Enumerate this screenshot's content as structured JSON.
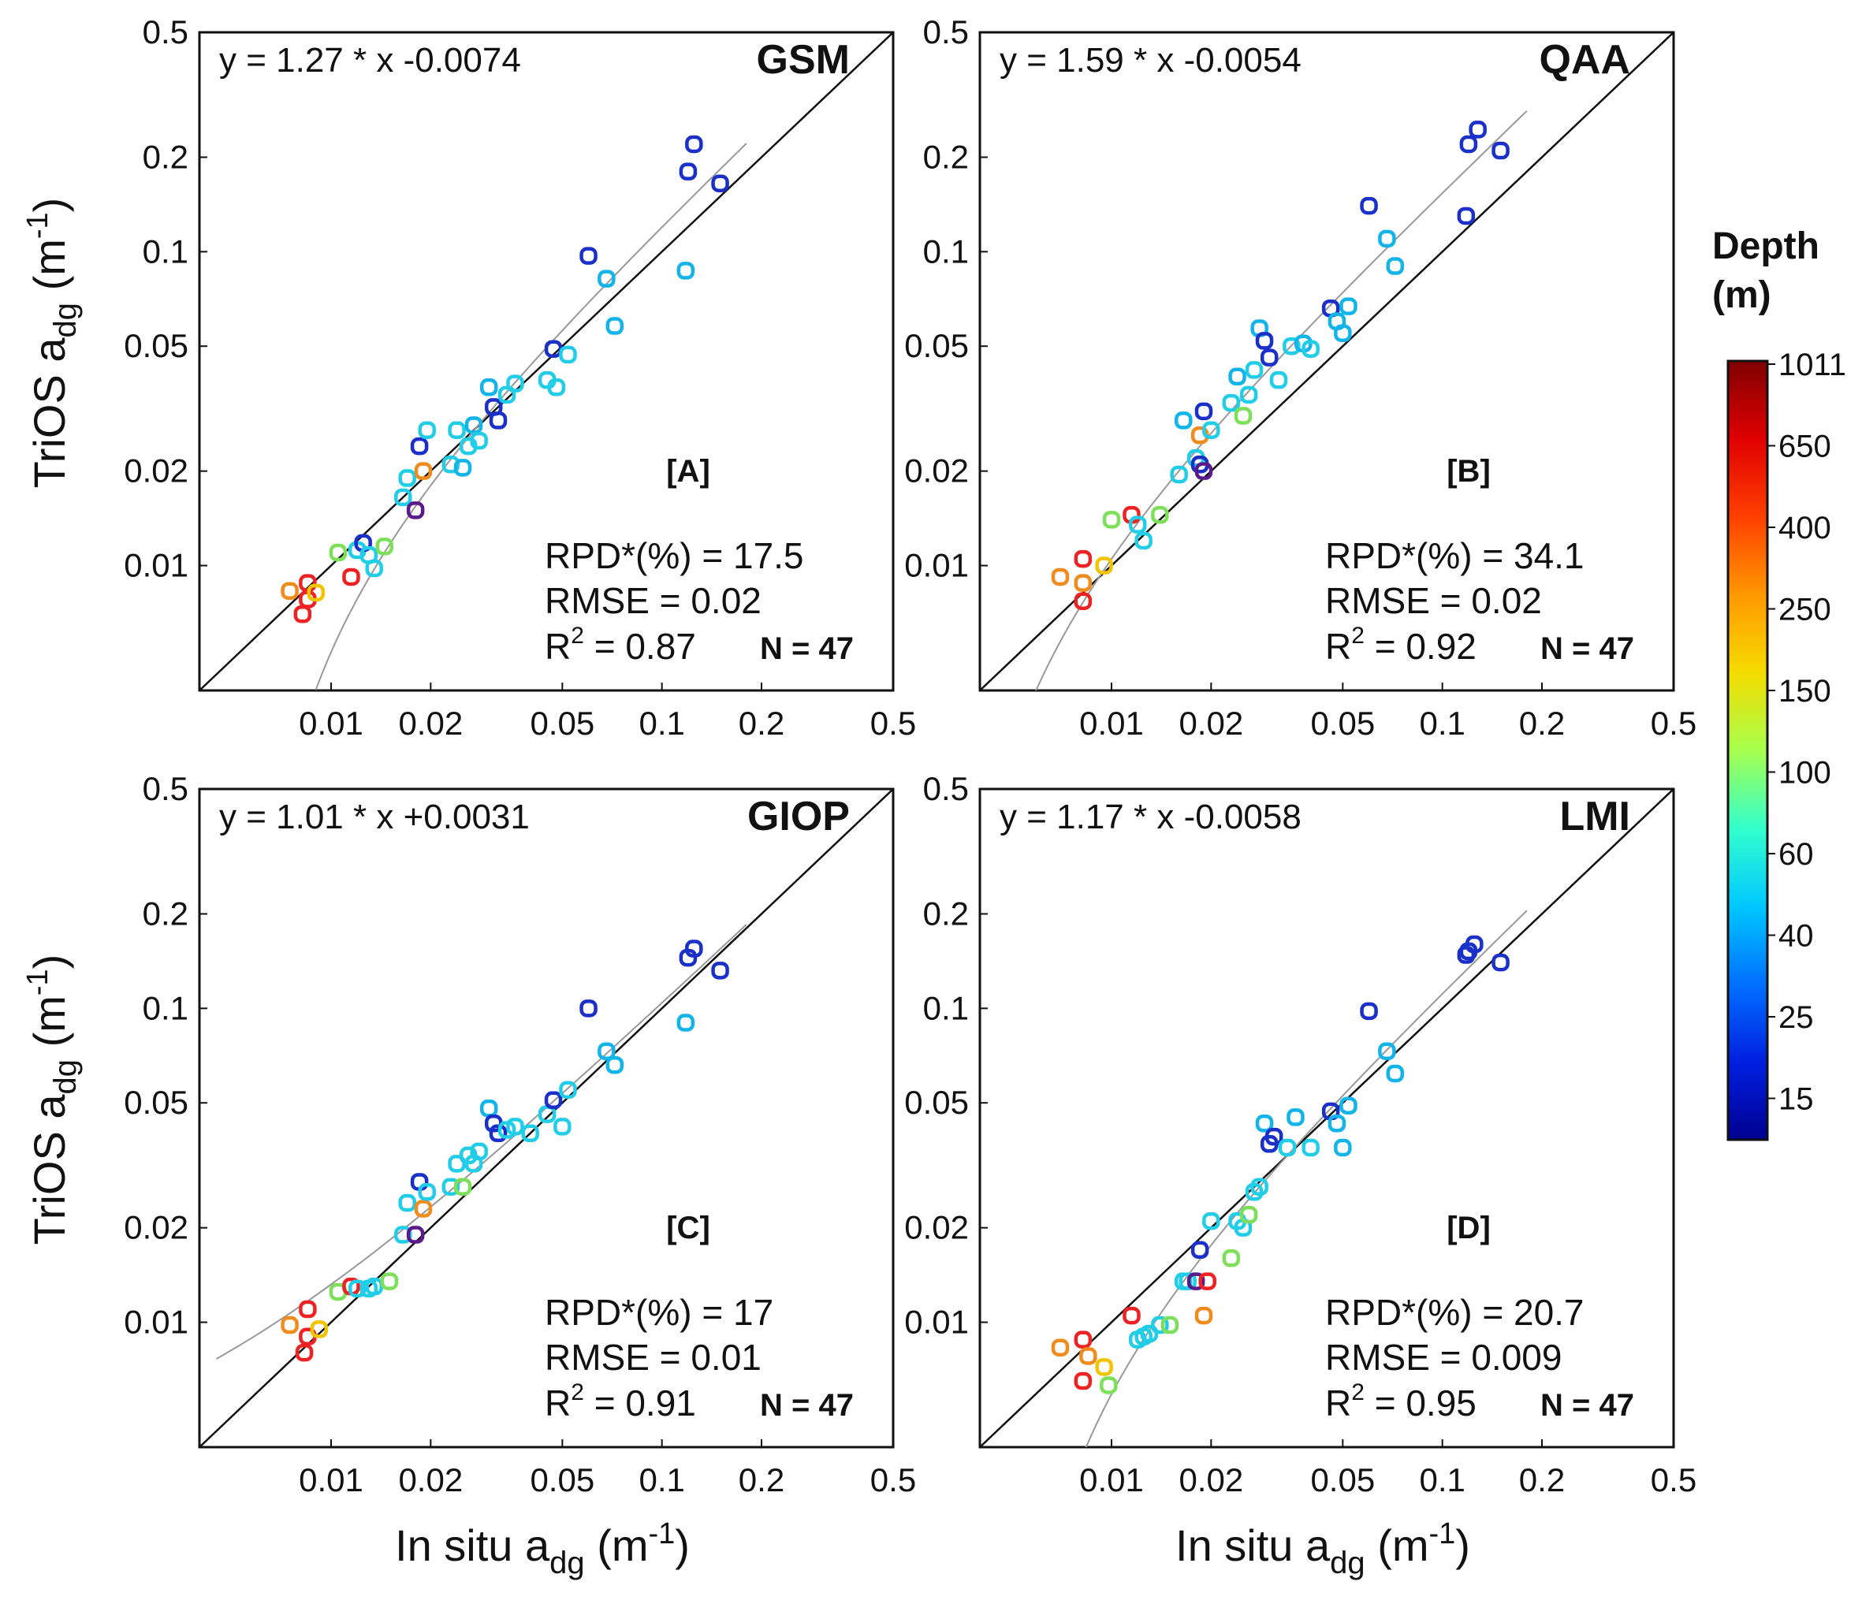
{
  "figure": {
    "y_axis_label": "TriOS a",
    "y_axis_sub": "dg",
    "x_axis_label": "In situ a",
    "x_axis_sub": "dg",
    "unit_open": " (m",
    "unit_exp": "-1",
    "unit_close": ")",
    "colorbar": {
      "title_line1": "Depth",
      "title_line2": "(m)",
      "tick_labels": [
        "1011",
        "650",
        "400",
        "250",
        "150",
        "100",
        "60",
        "40",
        "25",
        "15"
      ],
      "colors": [
        "#800000",
        "#e00000",
        "#ff4000",
        "#ff9800",
        "#f5dc00",
        "#a6ff4d",
        "#33ffcc",
        "#00c8ff",
        "#0070ff",
        "#0020e0",
        "#000090"
      ]
    }
  },
  "chart_data": [
    {
      "type": "scatter",
      "panel": "[A]",
      "title": "GSM",
      "equation": "y = 1.27 * x -0.0074",
      "stats": {
        "rpd": "RPD*(%) = 17.5",
        "rmse": "RMSE = 0.02",
        "r2_prefix": "R",
        "r2_sup": "2",
        "r2_value": " = 0.87",
        "n": "N = 47"
      },
      "fit": {
        "slope": 1.27,
        "intercept": -0.0074
      },
      "xscale": "log",
      "yscale": "log",
      "xlim": [
        0.004,
        0.5
      ],
      "ylim": [
        0.004,
        0.5
      ],
      "x_ticks": [
        "0.01",
        "0.02",
        "0.05",
        "0.1",
        "0.2",
        "0.5"
      ],
      "y_ticks": [
        "0.01",
        "0.02",
        "0.05",
        "0.1",
        "0.2",
        "0.5"
      ],
      "points": [
        [
          0.0075,
          0.0083,
          "orange"
        ],
        [
          0.0085,
          0.0088,
          "red"
        ],
        [
          0.0085,
          0.0078,
          "red"
        ],
        [
          0.0082,
          0.007,
          "red"
        ],
        [
          0.009,
          0.0082,
          "yellow"
        ],
        [
          0.0105,
          0.011,
          "lightgreen"
        ],
        [
          0.0115,
          0.0092,
          "red"
        ],
        [
          0.012,
          0.0112,
          "cyan"
        ],
        [
          0.0125,
          0.0118,
          "blue"
        ],
        [
          0.013,
          0.0108,
          "cyan"
        ],
        [
          0.0135,
          0.0098,
          "cyan"
        ],
        [
          0.0145,
          0.0115,
          "lightgreen"
        ],
        [
          0.0165,
          0.0165,
          "cyan"
        ],
        [
          0.017,
          0.019,
          "cyan"
        ],
        [
          0.018,
          0.015,
          "navy"
        ],
        [
          0.0185,
          0.024,
          "blue"
        ],
        [
          0.019,
          0.02,
          "orange"
        ],
        [
          0.0195,
          0.027,
          "cyan"
        ],
        [
          0.023,
          0.021,
          "cyan"
        ],
        [
          0.024,
          0.027,
          "cyan"
        ],
        [
          0.025,
          0.0205,
          "lightblue"
        ],
        [
          0.026,
          0.024,
          "cyan"
        ],
        [
          0.027,
          0.028,
          "lightblue"
        ],
        [
          0.028,
          0.025,
          "cyan"
        ],
        [
          0.03,
          0.037,
          "lightblue"
        ],
        [
          0.031,
          0.032,
          "blue"
        ],
        [
          0.032,
          0.029,
          "blue"
        ],
        [
          0.034,
          0.035,
          "cyan"
        ],
        [
          0.036,
          0.038,
          "cyan"
        ],
        [
          0.045,
          0.039,
          "cyan"
        ],
        [
          0.047,
          0.049,
          "blue"
        ],
        [
          0.048,
          0.037,
          "cyan"
        ],
        [
          0.052,
          0.047,
          "cyan"
        ],
        [
          0.06,
          0.097,
          "blue"
        ],
        [
          0.068,
          0.082,
          "lightblue"
        ],
        [
          0.072,
          0.058,
          "lightblue"
        ],
        [
          0.118,
          0.087,
          "lightblue"
        ],
        [
          0.12,
          0.18,
          "blue"
        ],
        [
          0.125,
          0.22,
          "blue"
        ],
        [
          0.15,
          0.165,
          "blue"
        ]
      ]
    },
    {
      "type": "scatter",
      "panel": "[B]",
      "title": "QAA",
      "equation": "y = 1.59 * x -0.0054",
      "stats": {
        "rpd": "RPD*(%) = 34.1",
        "rmse": "RMSE = 0.02",
        "r2_prefix": "R",
        "r2_sup": "2",
        "r2_value": " = 0.92",
        "n": "N = 47"
      },
      "fit": {
        "slope": 1.59,
        "intercept": -0.0054
      },
      "xscale": "log",
      "yscale": "log",
      "xlim": [
        0.004,
        0.5
      ],
      "ylim": [
        0.004,
        0.5
      ],
      "x_ticks": [
        "0.01",
        "0.02",
        "0.05",
        "0.1",
        "0.2",
        "0.5"
      ],
      "y_ticks": [
        "0.01",
        "0.02",
        "0.05",
        "0.1",
        "0.2",
        "0.5"
      ],
      "points": [
        [
          0.007,
          0.0092,
          "orange"
        ],
        [
          0.0082,
          0.0088,
          "orange"
        ],
        [
          0.0082,
          0.0105,
          "red"
        ],
        [
          0.0082,
          0.0077,
          "red"
        ],
        [
          0.0095,
          0.01,
          "yellow"
        ],
        [
          0.01,
          0.014,
          "lightgreen"
        ],
        [
          0.0115,
          0.0145,
          "red"
        ],
        [
          0.012,
          0.0135,
          "cyan"
        ],
        [
          0.0125,
          0.012,
          "cyan"
        ],
        [
          0.014,
          0.0145,
          "lightgreen"
        ],
        [
          0.016,
          0.0195,
          "cyan"
        ],
        [
          0.0165,
          0.029,
          "lightblue"
        ],
        [
          0.018,
          0.022,
          "cyan"
        ],
        [
          0.0185,
          0.021,
          "blue"
        ],
        [
          0.019,
          0.02,
          "navy"
        ],
        [
          0.0185,
          0.026,
          "orange"
        ],
        [
          0.019,
          0.031,
          "blue"
        ],
        [
          0.02,
          0.027,
          "cyan"
        ],
        [
          0.023,
          0.033,
          "cyan"
        ],
        [
          0.024,
          0.04,
          "lightblue"
        ],
        [
          0.025,
          0.03,
          "lightgreen"
        ],
        [
          0.026,
          0.035,
          "cyan"
        ],
        [
          0.027,
          0.042,
          "cyan"
        ],
        [
          0.028,
          0.057,
          "lightblue"
        ],
        [
          0.029,
          0.052,
          "blue"
        ],
        [
          0.03,
          0.046,
          "blue"
        ],
        [
          0.032,
          0.039,
          "cyan"
        ],
        [
          0.035,
          0.05,
          "cyan"
        ],
        [
          0.038,
          0.051,
          "lightblue"
        ],
        [
          0.04,
          0.049,
          "cyan"
        ],
        [
          0.046,
          0.066,
          "blue"
        ],
        [
          0.048,
          0.06,
          "lightblue"
        ],
        [
          0.05,
          0.055,
          "lightblue"
        ],
        [
          0.052,
          0.067,
          "lightblue"
        ],
        [
          0.06,
          0.14,
          "blue"
        ],
        [
          0.068,
          0.11,
          "lightblue"
        ],
        [
          0.072,
          0.09,
          "lightblue"
        ],
        [
          0.118,
          0.13,
          "blue"
        ],
        [
          0.12,
          0.22,
          "blue"
        ],
        [
          0.128,
          0.245,
          "blue"
        ],
        [
          0.15,
          0.21,
          "blue"
        ]
      ]
    },
    {
      "type": "scatter",
      "panel": "[C]",
      "title": "GIOP",
      "equation": "y = 1.01 * x +0.0031",
      "stats": {
        "rpd": "RPD*(%) = 17",
        "rmse": "RMSE = 0.01",
        "r2_prefix": "R",
        "r2_sup": "2",
        "r2_value": " = 0.91",
        "n": "N = 47"
      },
      "fit": {
        "slope": 1.01,
        "intercept": 0.0031
      },
      "xscale": "log",
      "yscale": "log",
      "xlim": [
        0.004,
        0.5
      ],
      "ylim": [
        0.004,
        0.5
      ],
      "x_ticks": [
        "0.01",
        "0.02",
        "0.05",
        "0.1",
        "0.2",
        "0.5"
      ],
      "y_ticks": [
        "0.01",
        "0.02",
        "0.05",
        "0.1",
        "0.2",
        "0.5"
      ],
      "points": [
        [
          0.0075,
          0.0098,
          "orange"
        ],
        [
          0.0085,
          0.011,
          "red"
        ],
        [
          0.0085,
          0.009,
          "red"
        ],
        [
          0.0083,
          0.008,
          "red"
        ],
        [
          0.0092,
          0.0095,
          "yellow"
        ],
        [
          0.0105,
          0.0125,
          "lightgreen"
        ],
        [
          0.0115,
          0.013,
          "red"
        ],
        [
          0.012,
          0.0128,
          "cyan"
        ],
        [
          0.013,
          0.0128,
          "cyan"
        ],
        [
          0.0135,
          0.013,
          "cyan"
        ],
        [
          0.015,
          0.0135,
          "lightgreen"
        ],
        [
          0.0165,
          0.019,
          "cyan"
        ],
        [
          0.017,
          0.024,
          "cyan"
        ],
        [
          0.018,
          0.019,
          "navy"
        ],
        [
          0.0185,
          0.028,
          "blue"
        ],
        [
          0.019,
          0.023,
          "orange"
        ],
        [
          0.0195,
          0.026,
          "cyan"
        ],
        [
          0.023,
          0.027,
          "cyan"
        ],
        [
          0.024,
          0.032,
          "cyan"
        ],
        [
          0.025,
          0.027,
          "lightgreen"
        ],
        [
          0.026,
          0.034,
          "cyan"
        ],
        [
          0.027,
          0.032,
          "cyan"
        ],
        [
          0.028,
          0.035,
          "cyan"
        ],
        [
          0.03,
          0.048,
          "lightblue"
        ],
        [
          0.031,
          0.043,
          "blue"
        ],
        [
          0.032,
          0.04,
          "blue"
        ],
        [
          0.034,
          0.041,
          "cyan"
        ],
        [
          0.036,
          0.042,
          "cyan"
        ],
        [
          0.04,
          0.04,
          "cyan"
        ],
        [
          0.045,
          0.046,
          "cyan"
        ],
        [
          0.047,
          0.051,
          "blue"
        ],
        [
          0.05,
          0.042,
          "cyan"
        ],
        [
          0.052,
          0.055,
          "cyan"
        ],
        [
          0.06,
          0.1,
          "blue"
        ],
        [
          0.068,
          0.073,
          "lightblue"
        ],
        [
          0.072,
          0.066,
          "lightblue"
        ],
        [
          0.118,
          0.09,
          "lightblue"
        ],
        [
          0.12,
          0.145,
          "blue"
        ],
        [
          0.125,
          0.155,
          "blue"
        ],
        [
          0.15,
          0.132,
          "blue"
        ]
      ]
    },
    {
      "type": "scatter",
      "panel": "[D]",
      "title": "LMI",
      "equation": "y = 1.17 * x -0.0058",
      "stats": {
        "rpd": "RPD*(%) = 20.7",
        "rmse": "RMSE = 0.009",
        "r2_prefix": "R",
        "r2_sup": "2",
        "r2_value": " = 0.95",
        "n": "N = 47"
      },
      "fit": {
        "slope": 1.17,
        "intercept": -0.0058
      },
      "xscale": "log",
      "yscale": "log",
      "xlim": [
        0.004,
        0.5
      ],
      "ylim": [
        0.004,
        0.5
      ],
      "x_ticks": [
        "0.01",
        "0.02",
        "0.05",
        "0.1",
        "0.2",
        "0.5"
      ],
      "y_ticks": [
        "0.01",
        "0.02",
        "0.05",
        "0.1",
        "0.2",
        "0.5"
      ],
      "points": [
        [
          0.007,
          0.0083,
          "orange"
        ],
        [
          0.0082,
          0.0088,
          "red"
        ],
        [
          0.0085,
          0.0078,
          "orange"
        ],
        [
          0.0082,
          0.0065,
          "red"
        ],
        [
          0.0095,
          0.0072,
          "yellow"
        ],
        [
          0.0098,
          0.0063,
          "lightgreen"
        ],
        [
          0.0115,
          0.0105,
          "red"
        ],
        [
          0.012,
          0.0088,
          "cyan"
        ],
        [
          0.0125,
          0.009,
          "cyan"
        ],
        [
          0.013,
          0.0092,
          "cyan"
        ],
        [
          0.014,
          0.0098,
          "cyan"
        ],
        [
          0.015,
          0.0098,
          "lightgreen"
        ],
        [
          0.0165,
          0.0135,
          "cyan"
        ],
        [
          0.017,
          0.0135,
          "cyan"
        ],
        [
          0.018,
          0.0135,
          "navy"
        ],
        [
          0.0185,
          0.017,
          "blue"
        ],
        [
          0.019,
          0.0105,
          "orange"
        ],
        [
          0.0195,
          0.0135,
          "red"
        ],
        [
          0.02,
          0.021,
          "cyan"
        ],
        [
          0.023,
          0.016,
          "lightgreen"
        ],
        [
          0.024,
          0.021,
          "cyan"
        ],
        [
          0.025,
          0.02,
          "cyan"
        ],
        [
          0.026,
          0.022,
          "lightgreen"
        ],
        [
          0.027,
          0.026,
          "cyan"
        ],
        [
          0.028,
          0.027,
          "cyan"
        ],
        [
          0.029,
          0.043,
          "lightblue"
        ],
        [
          0.03,
          0.037,
          "blue"
        ],
        [
          0.031,
          0.039,
          "blue"
        ],
        [
          0.034,
          0.036,
          "cyan"
        ],
        [
          0.036,
          0.045,
          "lightblue"
        ],
        [
          0.04,
          0.036,
          "cyan"
        ],
        [
          0.046,
          0.047,
          "blue"
        ],
        [
          0.048,
          0.043,
          "lightblue"
        ],
        [
          0.05,
          0.036,
          "lightblue"
        ],
        [
          0.052,
          0.049,
          "lightblue"
        ],
        [
          0.06,
          0.098,
          "blue"
        ],
        [
          0.068,
          0.073,
          "lightblue"
        ],
        [
          0.072,
          0.062,
          "lightblue"
        ],
        [
          0.118,
          0.148,
          "blue"
        ],
        [
          0.12,
          0.152,
          "blue"
        ],
        [
          0.125,
          0.16,
          "blue"
        ],
        [
          0.15,
          0.14,
          "blue"
        ]
      ]
    }
  ]
}
